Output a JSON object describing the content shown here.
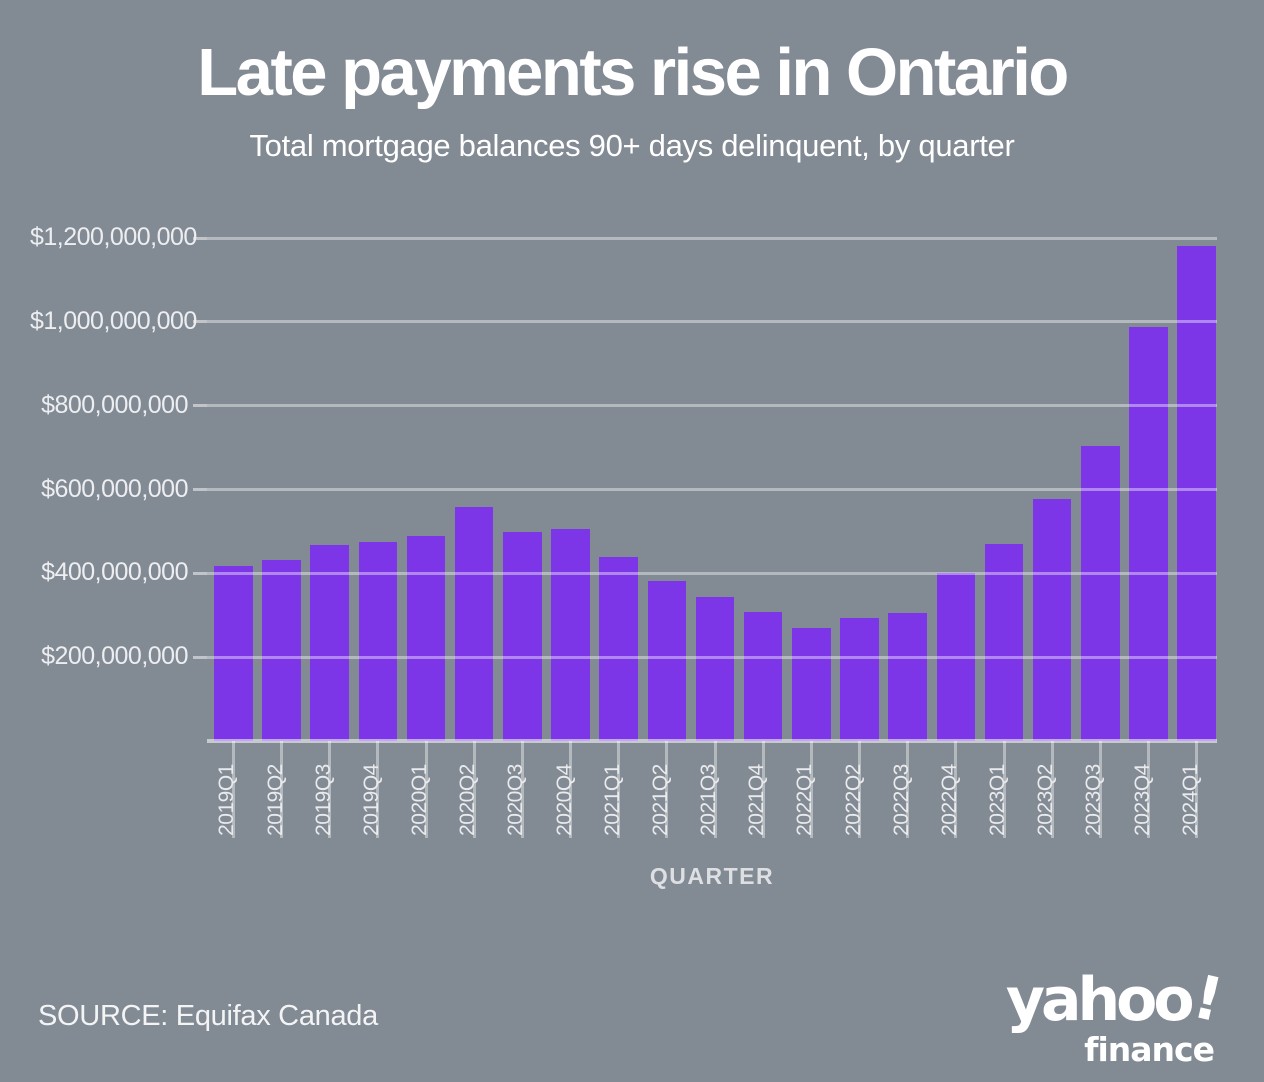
{
  "header": {
    "title": "Late payments rise in Ontario",
    "subtitle": "Total mortgage balances 90+ days delinquent, by quarter"
  },
  "chart_data": {
    "type": "bar",
    "title": "Late payments rise in Ontario",
    "subtitle": "Total mortgage balances 90+ days delinquent, by quarter",
    "categories": [
      "2019Q1",
      "2019Q2",
      "2019Q3",
      "2019Q4",
      "2020Q1",
      "2020Q2",
      "2020Q3",
      "2020Q4",
      "2021Q1",
      "2021Q2",
      "2021Q3",
      "2021Q4",
      "2022Q1",
      "2022Q2",
      "2022Q3",
      "2022Q4",
      "2023Q1",
      "2023Q2",
      "2023Q3",
      "2023Q4",
      "2024Q1"
    ],
    "values": [
      417000000,
      433000000,
      468000000,
      476000000,
      490000000,
      558000000,
      499000000,
      507000000,
      438000000,
      381000000,
      343000000,
      308000000,
      270000000,
      293000000,
      305000000,
      401000000,
      470000000,
      577000000,
      704000000,
      988000000,
      1180000000
    ],
    "xlabel": "QUARTER",
    "ylabel": "",
    "ylim": [
      0,
      1260000000
    ],
    "ymax_scale": 1200000000,
    "yticks": [
      200000000,
      400000000,
      600000000,
      800000000,
      1000000000,
      1200000000
    ],
    "ytick_labels": [
      "$200,000,000",
      "$400,000,000",
      "$600,000,000",
      "$800,000,000",
      "$1,000,000,000",
      "$1,200,000,000"
    ],
    "grid": true,
    "legend": false,
    "bar_color": "#7C36E8",
    "background_color": "#828A93",
    "gridline_color": "rgba(255,255,255,0.40)",
    "text_color": "#FFFFFF"
  },
  "footer": {
    "source": "SOURCE: Equifax Canada",
    "logo": {
      "brand": "yahoo",
      "exclamation": "!",
      "sub": "finance"
    }
  }
}
